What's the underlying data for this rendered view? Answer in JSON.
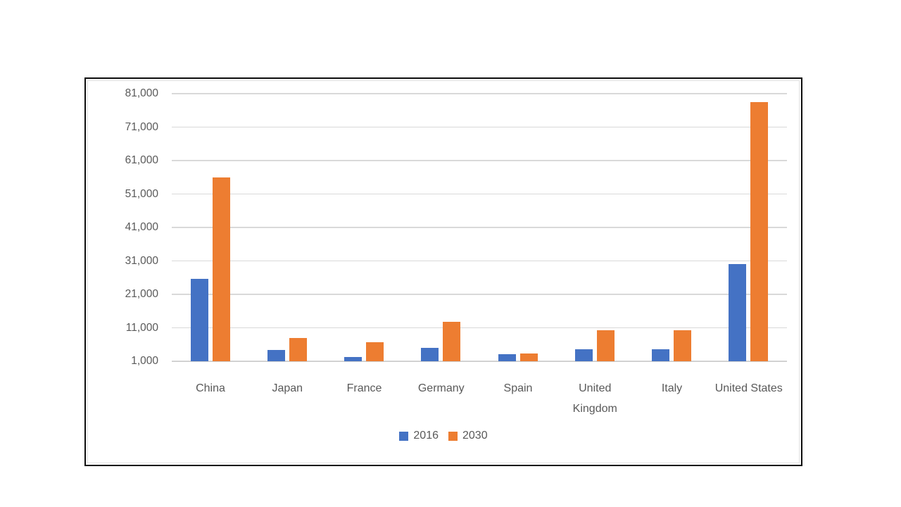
{
  "frame": {
    "border_color": "#0d0d0d",
    "background": "#ffffff"
  },
  "chart_data": {
    "type": "bar",
    "title": "",
    "xlabel": "",
    "ylabel": "",
    "categories": [
      "China",
      "Japan",
      "France",
      "Germany",
      "Spain",
      "United Kingdom",
      "Italy",
      "United States"
    ],
    "series": [
      {
        "name": "2016",
        "color": "#4472C4",
        "values": [
          25600,
          4400,
          2200,
          5100,
          3100,
          4600,
          4600,
          30100
        ]
      },
      {
        "name": "2030",
        "color": "#ED7D31",
        "values": [
          56000,
          7900,
          6700,
          12700,
          3400,
          10200,
          10300,
          78500
        ]
      }
    ],
    "ylim": [
      1000,
      81000
    ],
    "y_tick_interval": 10000,
    "y_tick_labels": [
      "1,000",
      "11,000",
      "21,000",
      "31,000",
      "41,000",
      "51,000",
      "61,000",
      "71,000",
      "81,000"
    ],
    "grid": true,
    "gridline_color": "#d9d9d9",
    "axis_text_color": "#595959",
    "legend_position": "bottom-center",
    "legend_entries": [
      "2016",
      "2030"
    ]
  }
}
